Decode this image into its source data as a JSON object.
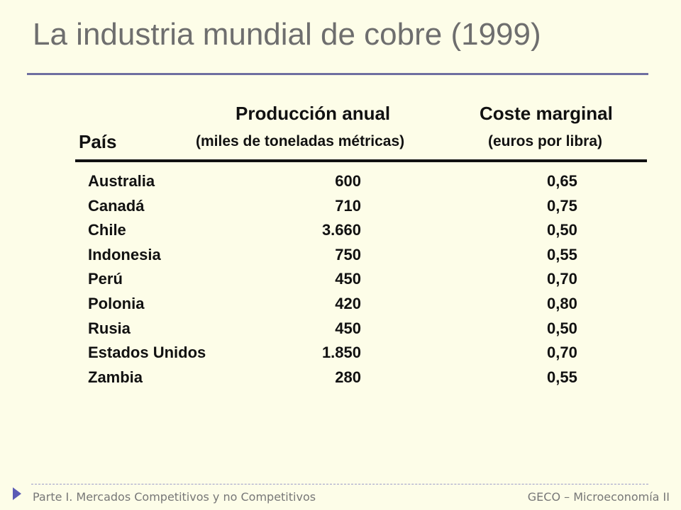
{
  "slide": {
    "title": "La industria mundial de cobre (1999)"
  },
  "table": {
    "headers": {
      "country": "País",
      "production": "Producción anual",
      "production_unit": "(miles de toneladas métricas)",
      "cost": "Coste marginal",
      "cost_unit": "(euros por libra)"
    },
    "rows": [
      {
        "country": "Australia",
        "production": "600",
        "cost": "0,65"
      },
      {
        "country": "Canadá",
        "production": "710",
        "cost": "0,75"
      },
      {
        "country": "Chile",
        "production": "3.660",
        "cost": "0,50"
      },
      {
        "country": "Indonesia",
        "production": "750",
        "cost": "0,55"
      },
      {
        "country": "Perú",
        "production": "450",
        "cost": "0,70"
      },
      {
        "country": "Polonia",
        "production": "420",
        "cost": "0,80"
      },
      {
        "country": "Rusia",
        "production": "450",
        "cost": "0,50"
      },
      {
        "country": "Estados Unidos",
        "production": "1.850",
        "cost": "0,70"
      },
      {
        "country": "Zambia",
        "production": "280",
        "cost": "0,55"
      }
    ]
  },
  "footer": {
    "left": "Parte I. Mercados Competitivos y no Competitivos",
    "right": "GECO – Microeconomía II",
    "arrow_icon": "triangle-right-icon"
  }
}
